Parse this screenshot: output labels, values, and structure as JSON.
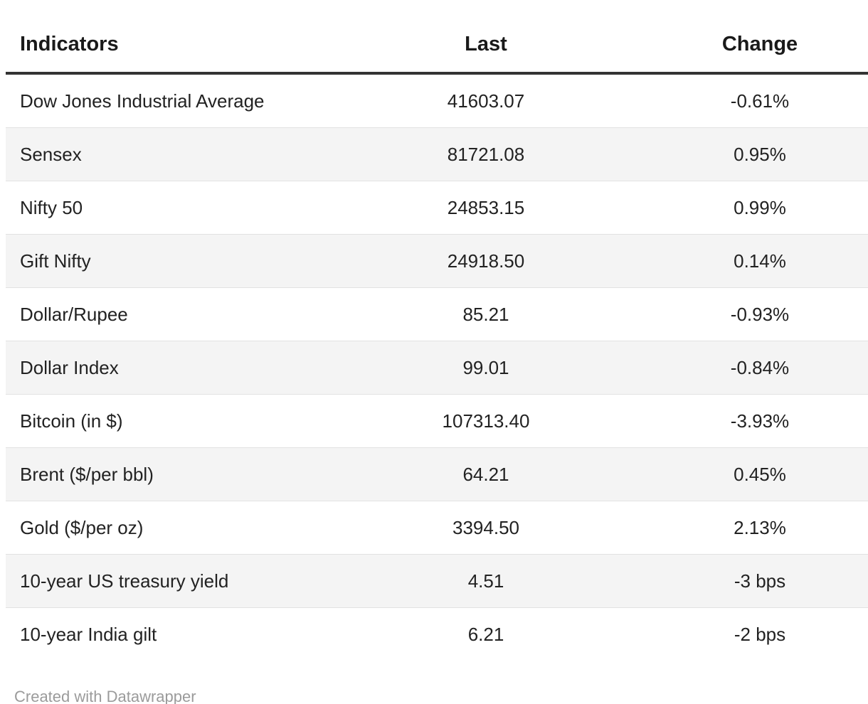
{
  "chart_data": {
    "type": "table",
    "title": "",
    "columns": [
      "Indicators",
      "Last",
      "Change"
    ],
    "rows": [
      {
        "indicator": "Dow Jones Industrial Average",
        "last": "41603.07",
        "change": "-0.61%"
      },
      {
        "indicator": "Sensex",
        "last": "81721.08",
        "change": "0.95%"
      },
      {
        "indicator": "Nifty 50",
        "last": "24853.15",
        "change": "0.99%"
      },
      {
        "indicator": "Gift Nifty",
        "last": "24918.50",
        "change": "0.14%"
      },
      {
        "indicator": "Dollar/Rupee",
        "last": "85.21",
        "change": "-0.93%"
      },
      {
        "indicator": "Dollar Index",
        "last": "99.01",
        "change": "-0.84%"
      },
      {
        "indicator": "Bitcoin (in $)",
        "last": "107313.40",
        "change": "-3.93%"
      },
      {
        "indicator": "Brent ($/per bbl)",
        "last": "64.21",
        "change": "0.45%"
      },
      {
        "indicator": "Gold ($/per oz)",
        "last": "3394.50",
        "change": "2.13%"
      },
      {
        "indicator": "10-year US treasury yield",
        "last": "4.51",
        "change": "-3 bps"
      },
      {
        "indicator": "10-year India gilt",
        "last": "6.21",
        "change": "-2 bps"
      }
    ],
    "layout_hints": {
      "zebra_striping": true,
      "column_alignment": [
        "left",
        "center",
        "center"
      ],
      "header_rule": true
    }
  },
  "footer": {
    "attribution": "Created with Datawrapper"
  },
  "colors": {
    "background": "#ffffff",
    "text": "#222222",
    "header_text": "#1a1a1a",
    "header_rule": "#333333",
    "zebra_row": "#f4f4f4",
    "row_border": "#e2e2e2",
    "footer_text": "#9b9b9b"
  }
}
